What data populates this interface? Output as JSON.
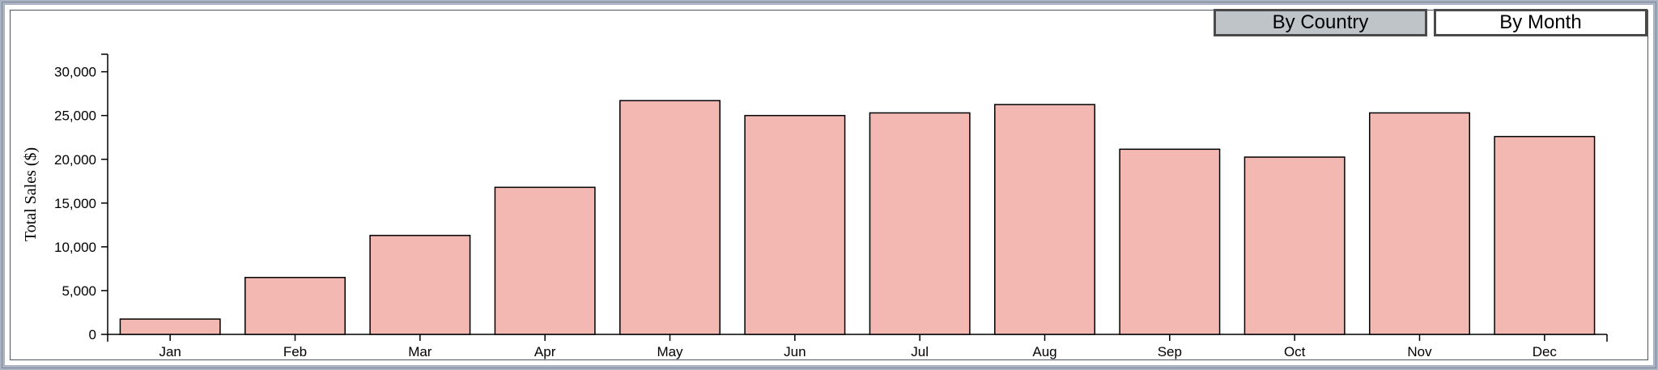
{
  "controls": {
    "by_country": "By Country",
    "by_month": "By Month",
    "active": "by_country"
  },
  "chart_data": {
    "type": "bar",
    "title": "",
    "xlabel": "",
    "ylabel": "Total Sales ($)",
    "categories": [
      "Jan",
      "Feb",
      "Mar",
      "Apr",
      "May",
      "Jun",
      "Jul",
      "Aug",
      "Sep",
      "Oct",
      "Nov",
      "Dec"
    ],
    "values": [
      1750,
      6500,
      11300,
      16800,
      26700,
      25000,
      25300,
      26250,
      21150,
      20250,
      25300,
      22600
    ],
    "ylim": [
      0,
      32000
    ],
    "yticks": [
      0,
      5000,
      10000,
      15000,
      20000,
      25000,
      30000
    ],
    "ytick_labels": [
      "0",
      "5,000",
      "10,000",
      "15,000",
      "20,000",
      "25,000",
      "30,000"
    ],
    "grid": false,
    "bar_fill": "#f4b8b3",
    "bar_stroke": "#000000"
  }
}
